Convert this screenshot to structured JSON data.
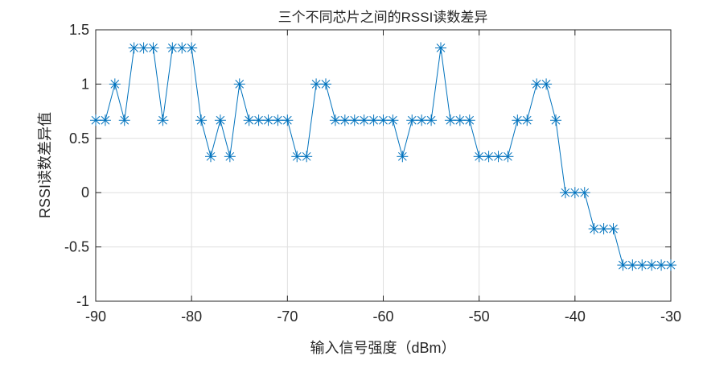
{
  "chart_data": {
    "type": "line",
    "title": "三个不同芯片之间的RSSI读数差异",
    "xlabel": "输入信号强度（dBm）",
    "ylabel": "RSSI读数差异值",
    "xlim": [
      -90,
      -30
    ],
    "ylim": [
      -1,
      1.5
    ],
    "xticks": [
      -90,
      -80,
      -70,
      -60,
      -50,
      -40,
      -30
    ],
    "yticks": [
      -1,
      -0.5,
      0,
      0.5,
      1,
      1.5
    ],
    "xtick_labels": [
      "-90",
      "-80",
      "-70",
      "-60",
      "-50",
      "-40",
      "-30"
    ],
    "ytick_labels": [
      "-1",
      "-0.5",
      "0",
      "0.5",
      "1",
      "1.5"
    ],
    "grid": true,
    "marker": "asterisk",
    "color": "#0072BD",
    "x": [
      -90,
      -89,
      -88,
      -87,
      -86,
      -85,
      -84,
      -83,
      -82,
      -81,
      -80,
      -79,
      -78,
      -77,
      -76,
      -75,
      -74,
      -73,
      -72,
      -71,
      -70,
      -69,
      -68,
      -67,
      -66,
      -65,
      -64,
      -63,
      -62,
      -61,
      -60,
      -59,
      -58,
      -57,
      -56,
      -55,
      -54,
      -53,
      -52,
      -51,
      -50,
      -49,
      -48,
      -47,
      -46,
      -45,
      -44,
      -43,
      -42,
      -41,
      -40,
      -39,
      -38,
      -37,
      -36,
      -35,
      -34,
      -33,
      -32,
      -31,
      -30
    ],
    "y": [
      0.667,
      0.667,
      1,
      0.667,
      1.333,
      1.333,
      1.333,
      0.667,
      1.333,
      1.333,
      1.333,
      0.667,
      0.333,
      0.667,
      0.333,
      1,
      0.667,
      0.667,
      0.667,
      0.667,
      0.667,
      0.333,
      0.333,
      1,
      1,
      0.667,
      0.667,
      0.667,
      0.667,
      0.667,
      0.667,
      0.667,
      0.333,
      0.667,
      0.667,
      0.667,
      1.333,
      0.667,
      0.667,
      0.667,
      0.333,
      0.333,
      0.333,
      0.333,
      0.667,
      0.667,
      1,
      1,
      0.667,
      0,
      0,
      0,
      -0.333,
      -0.333,
      -0.333,
      -0.667,
      -0.667,
      -0.667,
      -0.667,
      -0.667,
      -0.667
    ]
  }
}
